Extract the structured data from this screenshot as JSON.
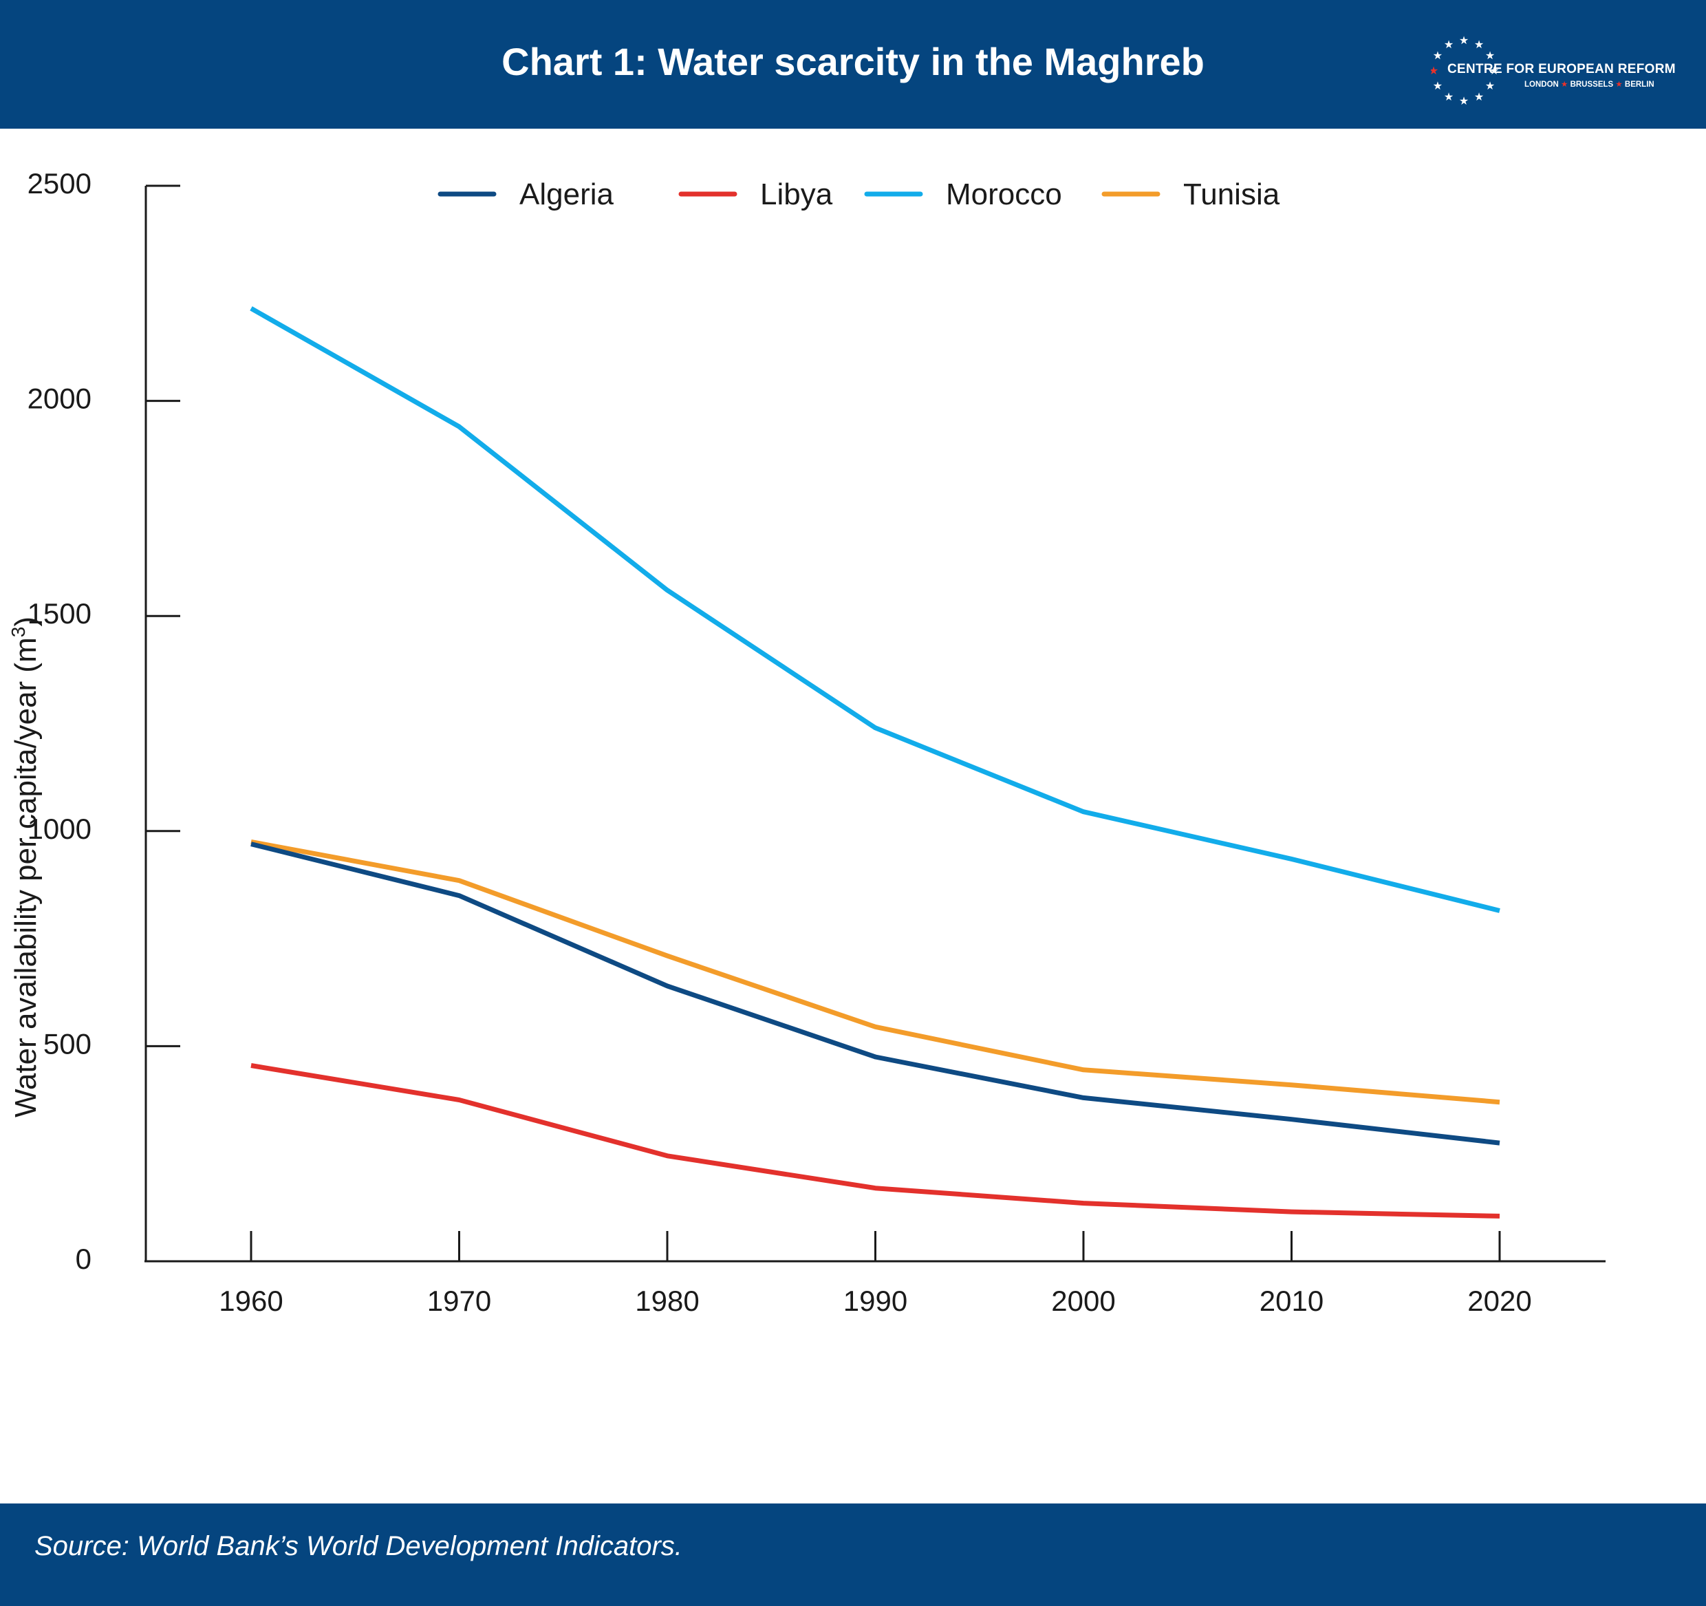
{
  "header": {
    "title": "Chart 1: Water scarcity in the Maghreb",
    "logo_name": "CENTRE FOR EUROPEAN REFORM",
    "logo_cities": [
      "LONDON",
      "BRUSSELS",
      "BERLIN"
    ]
  },
  "footer": {
    "source": "Source: World Bank’s World Development Indicators."
  },
  "colors": {
    "header_bg": "#05457f",
    "footer_bg": "#05457f",
    "logo_star_accent": "#e8322b"
  },
  "chart_data": {
    "type": "line",
    "title": "Chart 1: Water scarcity in the Maghreb",
    "xlabel": "",
    "ylabel": "Water availability per capita/year (m³)",
    "ylabel_main": "Water availability per capita/year (m",
    "ylabel_sup": "3",
    "ylabel_end": ")",
    "x": [
      1960,
      1970,
      1980,
      1990,
      2000,
      2010,
      2020
    ],
    "x_tick_labels": [
      "1960",
      "1970",
      "1980",
      "1990",
      "2000",
      "2010",
      "2020"
    ],
    "y_ticks": [
      0,
      500,
      1000,
      1500,
      2000,
      2500
    ],
    "y_tick_labels": [
      "0",
      "500",
      "1000",
      "1500",
      "2000",
      "2500"
    ],
    "ylim": [
      0,
      2500
    ],
    "xlim": [
      1955,
      2025
    ],
    "grid": false,
    "legend_position": "top",
    "series": [
      {
        "name": "Algeria",
        "color": "#0e4a83",
        "values": [
          970,
          850,
          640,
          475,
          380,
          330,
          275
        ]
      },
      {
        "name": "Libya",
        "color": "#e3312c",
        "values": [
          455,
          375,
          245,
          170,
          135,
          115,
          105
        ]
      },
      {
        "name": "Morocco",
        "color": "#12acea",
        "values": [
          2215,
          1940,
          1560,
          1240,
          1045,
          935,
          815
        ]
      },
      {
        "name": "Tunisia",
        "color": "#f39c2a",
        "values": [
          975,
          885,
          710,
          545,
          445,
          410,
          370
        ]
      }
    ]
  }
}
